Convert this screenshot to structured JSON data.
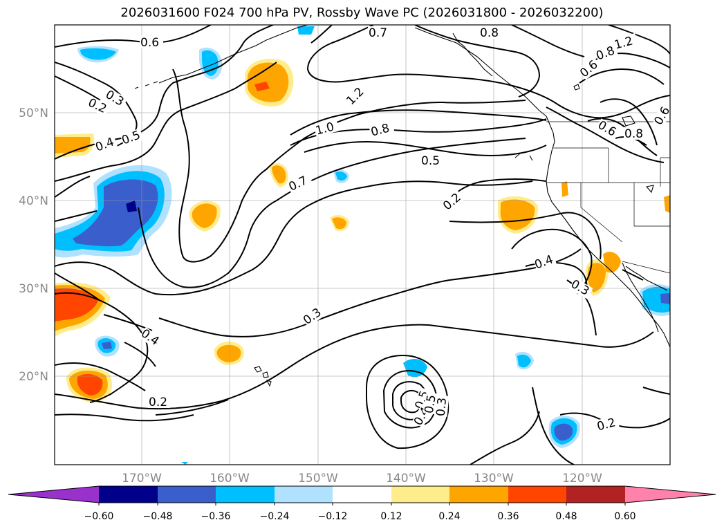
{
  "title": "2026031600 F024 700 hPa PV, Rossby Wave PC (2026031800 - 2026032200)",
  "map": {
    "lat_labels": [
      "50°N",
      "40°N",
      "30°N",
      "20°N"
    ],
    "lon_labels": [
      "170°W",
      "160°W",
      "150°W",
      "140°W",
      "130°W",
      "120°W"
    ],
    "contour_labels": [
      "0.6",
      "0.3",
      "0.2",
      "0.4",
      "0.5",
      "1.0",
      "0.8",
      "0.7",
      "1.2",
      "0.5",
      "0.2",
      "0.6",
      "0.8",
      "0.4",
      "0.3",
      "0.3",
      "0.4",
      "0.5",
      "0.2",
      "0.2",
      "1.2",
      "0.7",
      "0.8",
      "0.6",
      "0.6",
      "0.8",
      "0.4",
      "0.5",
      "0.3"
    ],
    "grid": true
  },
  "colorbar": {
    "ticks": [
      "−0.60",
      "−0.48",
      "−0.36",
      "−0.24",
      "−0.12",
      "0.12",
      "0.24",
      "0.36",
      "0.48",
      "0.60"
    ],
    "colors": [
      "#9932cc",
      "#00008b",
      "#3a5fcd",
      "#00bfff",
      "#b0e2ff",
      "#ffffff",
      "#ffec8b",
      "#ffa500",
      "#ff4500",
      "#b22222",
      "#ff82ab"
    ]
  }
}
